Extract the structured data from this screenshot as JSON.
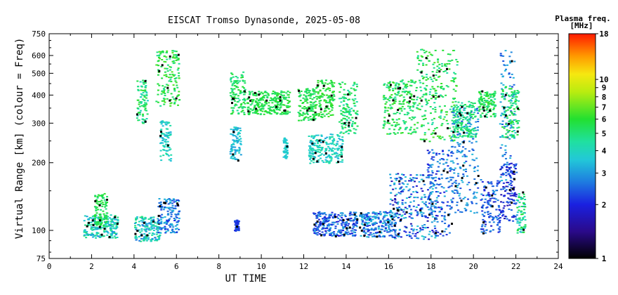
{
  "chart_data": {
    "type": "scatter",
    "title": "EISCAT Tromso Dynasonde, 2025-05-08",
    "xlabel": "UT TIME",
    "ylabel": "Virtual Range [km] (colour = Freq)",
    "x_ticks": [
      "0",
      "2",
      "4",
      "6",
      "8",
      "10",
      "12",
      "14",
      "16",
      "18",
      "20",
      "22",
      "24"
    ],
    "y_ticks": [
      "750",
      "600",
      "500",
      "400",
      "300",
      "200",
      "100",
      "75"
    ],
    "y_tick_values": [
      750,
      600,
      500,
      400,
      300,
      200,
      100,
      75
    ],
    "xlim": [
      0,
      24
    ],
    "ylim": [
      75,
      750
    ],
    "y_scale": "log",
    "colorbar": {
      "title": "Plasma freq.",
      "unit": "[MHz]",
      "ticks": [
        "18",
        "10",
        "9",
        "8",
        "7",
        "6",
        "5",
        "4",
        "3",
        "2",
        "1"
      ],
      "tick_values": [
        18,
        10,
        9,
        8,
        7,
        6,
        5,
        4,
        3,
        2,
        1
      ],
      "scale": "log",
      "range": [
        1,
        18
      ]
    },
    "series": [
      {
        "x": [
          1.6,
          3.2
        ],
        "y": [
          93,
          118
        ],
        "f": [
          2.8,
          5.2
        ]
      },
      {
        "x": [
          2.1,
          2.7
        ],
        "y": [
          105,
          148
        ],
        "f": [
          4.8,
          6.2
        ]
      },
      {
        "x": [
          4.0,
          5.2
        ],
        "y": [
          90,
          116
        ],
        "f": [
          2.6,
          5.0
        ]
      },
      {
        "x": [
          5.1,
          6.1
        ],
        "y": [
          98,
          140
        ],
        "f": [
          2.0,
          3.6
        ]
      },
      {
        "x": [
          4.1,
          4.6
        ],
        "y": [
          300,
          470
        ],
        "f": [
          3.8,
          6.2
        ]
      },
      {
        "x": [
          5.0,
          6.1
        ],
        "y": [
          360,
          640
        ],
        "f": [
          4.5,
          6.8
        ]
      },
      {
        "x": [
          5.2,
          5.7
        ],
        "y": [
          205,
          310
        ],
        "f": [
          3.2,
          4.5
        ]
      },
      {
        "x": [
          8.5,
          9.2
        ],
        "y": [
          330,
          510
        ],
        "f": [
          4.5,
          6.2
        ]
      },
      {
        "x": [
          8.5,
          9.0
        ],
        "y": [
          205,
          290
        ],
        "f": [
          3.0,
          4.0
        ]
      },
      {
        "x": [
          8.7,
          8.9
        ],
        "y": [
          100,
          112
        ],
        "f": [
          2.0,
          2.4
        ]
      },
      {
        "x": [
          9.3,
          11.3
        ],
        "y": [
          330,
          420
        ],
        "f": [
          5.0,
          6.2
        ]
      },
      {
        "x": [
          11.0,
          11.2
        ],
        "y": [
          210,
          260
        ],
        "f": [
          3.4,
          4.0
        ]
      },
      {
        "x": [
          11.7,
          12.5
        ],
        "y": [
          310,
          430
        ],
        "f": [
          5.0,
          6.0
        ]
      },
      {
        "x": [
          12.2,
          13.8
        ],
        "y": [
          200,
          270
        ],
        "f": [
          3.2,
          4.6
        ]
      },
      {
        "x": [
          12.5,
          13.4
        ],
        "y": [
          320,
          470
        ],
        "f": [
          5.2,
          6.5
        ]
      },
      {
        "x": [
          12.4,
          14.5
        ],
        "y": [
          95,
          122
        ],
        "f": [
          1.8,
          3.2
        ]
      },
      {
        "x": [
          13.6,
          14.5
        ],
        "y": [
          270,
          460
        ],
        "f": [
          4.2,
          6.0
        ]
      },
      {
        "x": [
          14.6,
          16.3
        ],
        "y": [
          94,
          122
        ],
        "f": [
          1.8,
          3.6
        ]
      },
      {
        "x": [
          16.0,
          18.2
        ],
        "y": [
          92,
          180
        ],
        "f": [
          1.6,
          3.8
        ]
      },
      {
        "x": [
          15.7,
          17.3
        ],
        "y": [
          270,
          470
        ],
        "f": [
          4.5,
          6.5
        ]
      },
      {
        "x": [
          17.3,
          19.2
        ],
        "y": [
          250,
          650
        ],
        "f": [
          4.2,
          6.8
        ]
      },
      {
        "x": [
          17.8,
          19.0
        ],
        "y": [
          95,
          230
        ],
        "f": [
          1.8,
          3.4
        ]
      },
      {
        "x": [
          18.9,
          20.2
        ],
        "y": [
          120,
          360
        ],
        "f": [
          2.2,
          3.4
        ]
      },
      {
        "x": [
          19.0,
          20.1
        ],
        "y": [
          260,
          380
        ],
        "f": [
          4.0,
          5.6
        ]
      },
      {
        "x": [
          20.2,
          21.0
        ],
        "y": [
          320,
          420
        ],
        "f": [
          4.5,
          6.5
        ]
      },
      {
        "x": [
          20.3,
          21.2
        ],
        "y": [
          98,
          170
        ],
        "f": [
          1.8,
          3.0
        ]
      },
      {
        "x": [
          21.2,
          21.9
        ],
        "y": [
          150,
          640
        ],
        "f": [
          2.2,
          3.4
        ]
      },
      {
        "x": [
          21.3,
          22.1
        ],
        "y": [
          260,
          440
        ],
        "f": [
          4.0,
          6.2
        ]
      },
      {
        "x": [
          21.2,
          22.0
        ],
        "y": [
          110,
          200
        ],
        "f": [
          1.6,
          2.6
        ]
      },
      {
        "x": [
          22.0,
          22.4
        ],
        "y": [
          98,
          150
        ],
        "f": [
          3.0,
          6.0
        ]
      }
    ],
    "grid": false,
    "legend": "colorbar-right"
  }
}
